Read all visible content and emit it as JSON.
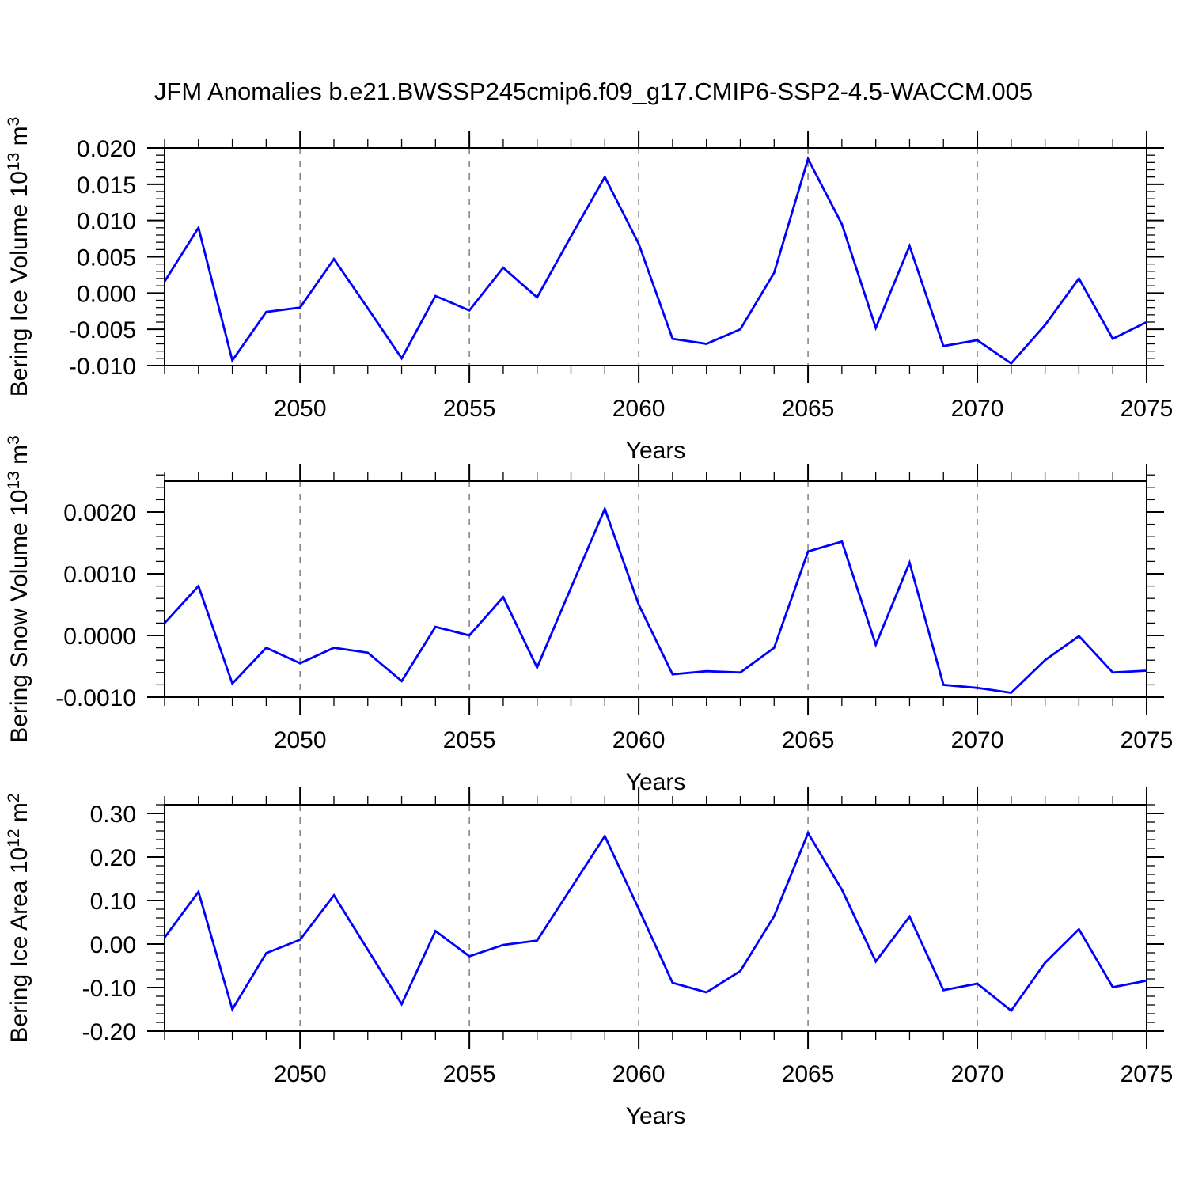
{
  "title": "JFM Anomalies b.e21.BWSSP245cmip6.f09_g17.CMIP6-SSP2-4.5-WACCM.005",
  "figure": {
    "background_color": "#ffffff",
    "frame_color": "#000000",
    "gridline_color": "#777777",
    "line_color": "#0000ff"
  },
  "chart_data": [
    {
      "type": "line",
      "id": "ice-volume",
      "series_name": "Bering Ice Volume",
      "xlabel": "Years",
      "ylabel_runs": [
        {
          "text": "Bering Ice Volume 10",
          "sup": false
        },
        {
          "text": "13",
          "sup": true
        },
        {
          "text": " m",
          "sup": false
        },
        {
          "text": "3",
          "sup": true
        }
      ],
      "x": [
        2046,
        2047,
        2048,
        2049,
        2050,
        2051,
        2052,
        2053,
        2054,
        2055,
        2056,
        2057,
        2058,
        2059,
        2060,
        2061,
        2062,
        2063,
        2064,
        2065,
        2066,
        2067,
        2068,
        2069,
        2070,
        2071,
        2072,
        2073,
        2074,
        2075
      ],
      "values": [
        0.0016,
        0.009,
        -0.0093,
        -0.0026,
        -0.002,
        0.0047,
        -0.0021,
        -0.009,
        -0.0004,
        -0.0024,
        0.0035,
        -0.0006,
        0.0078,
        0.016,
        0.0068,
        -0.0063,
        -0.007,
        -0.005,
        0.0028,
        0.0185,
        0.0095,
        -0.0048,
        0.0065,
        -0.0073,
        -0.0065,
        -0.0097,
        -0.0044,
        0.002,
        -0.0063,
        -0.004
      ],
      "xlim": [
        2046,
        2075
      ],
      "ylim": [
        -0.01,
        0.02
      ],
      "xticks": [
        2050,
        2055,
        2060,
        2065,
        2070,
        2075
      ],
      "xtick_labels": [
        "2050",
        "2055",
        "2060",
        "2065",
        "2070",
        "2075"
      ],
      "x_minor_step": 1,
      "yticks": [
        0.02,
        0.015,
        0.01,
        0.005,
        0.0,
        -0.005,
        -0.01
      ],
      "ytick_labels": [
        "0.020",
        "0.015",
        "0.010",
        "0.005",
        "0.000",
        "-0.005",
        "-0.010"
      ],
      "y_minor_step": 0.001,
      "grid": "vertical-dashed",
      "line_color": "#0000ff"
    },
    {
      "type": "line",
      "id": "snow-volume",
      "series_name": "Bering Snow Volume",
      "xlabel": "Years",
      "ylabel_runs": [
        {
          "text": "Bering Snow Volume 10",
          "sup": false
        },
        {
          "text": "13",
          "sup": true
        },
        {
          "text": " m",
          "sup": false
        },
        {
          "text": "3",
          "sup": true
        }
      ],
      "x": [
        2046,
        2047,
        2048,
        2049,
        2050,
        2051,
        2052,
        2053,
        2054,
        2055,
        2056,
        2057,
        2058,
        2059,
        2060,
        2061,
        2062,
        2063,
        2064,
        2065,
        2066,
        2067,
        2068,
        2069,
        2070,
        2071,
        2072,
        2073,
        2074,
        2075
      ],
      "values": [
        0.0002,
        0.0008,
        -0.00078,
        -0.0002,
        -0.00045,
        -0.0002,
        -0.00028,
        -0.00074,
        0.00014,
        0.0,
        0.00062,
        -0.00052,
        0.00077,
        0.00205,
        0.0005,
        -0.00063,
        -0.00058,
        -0.0006,
        -0.0002,
        0.00136,
        0.00152,
        -0.00015,
        0.00118,
        -0.0008,
        -0.00085,
        -0.00093,
        -0.0004,
        -1e-05,
        -0.0006,
        -0.00057
      ],
      "xlim": [
        2046,
        2075
      ],
      "ylim": [
        -0.001,
        0.0025
      ],
      "xticks": [
        2050,
        2055,
        2060,
        2065,
        2070,
        2075
      ],
      "xtick_labels": [
        "2050",
        "2055",
        "2060",
        "2065",
        "2070",
        "2075"
      ],
      "x_minor_step": 1,
      "yticks": [
        0.002,
        0.001,
        0.0,
        -0.001
      ],
      "ytick_labels": [
        "0.0020",
        "0.0010",
        "0.0000",
        "-0.0010"
      ],
      "y_minor_step": 0.0002,
      "grid": "vertical-dashed",
      "line_color": "#0000ff"
    },
    {
      "type": "line",
      "id": "ice-area",
      "series_name": "Bering Ice Area",
      "xlabel": "Years",
      "ylabel_runs": [
        {
          "text": "Bering Ice Area 10",
          "sup": false
        },
        {
          "text": "12",
          "sup": true
        },
        {
          "text": " m",
          "sup": false
        },
        {
          "text": "2",
          "sup": true
        }
      ],
      "x": [
        2046,
        2047,
        2048,
        2049,
        2050,
        2051,
        2052,
        2053,
        2054,
        2055,
        2056,
        2057,
        2058,
        2059,
        2060,
        2061,
        2062,
        2063,
        2064,
        2065,
        2066,
        2067,
        2068,
        2069,
        2070,
        2071,
        2072,
        2073,
        2074,
        2075
      ],
      "values": [
        0.015,
        0.12,
        -0.15,
        -0.021,
        0.01,
        0.112,
        -0.013,
        -0.138,
        0.03,
        -0.028,
        -0.002,
        0.008,
        0.128,
        0.248,
        0.081,
        -0.089,
        -0.111,
        -0.062,
        0.064,
        0.255,
        0.125,
        -0.04,
        0.063,
        -0.106,
        -0.091,
        -0.153,
        -0.043,
        0.034,
        -0.099,
        -0.084
      ],
      "xlim": [
        2046,
        2075
      ],
      "ylim": [
        -0.2,
        0.32
      ],
      "xticks": [
        2050,
        2055,
        2060,
        2065,
        2070,
        2075
      ],
      "xtick_labels": [
        "2050",
        "2055",
        "2060",
        "2065",
        "2070",
        "2075"
      ],
      "x_minor_step": 1,
      "yticks": [
        0.3,
        0.2,
        0.1,
        0.0,
        -0.1,
        -0.2
      ],
      "ytick_labels": [
        "0.30",
        "0.20",
        "0.10",
        "0.00",
        "-0.10",
        "-0.20"
      ],
      "y_minor_step": 0.02,
      "grid": "vertical-dashed",
      "line_color": "#0000ff"
    }
  ]
}
